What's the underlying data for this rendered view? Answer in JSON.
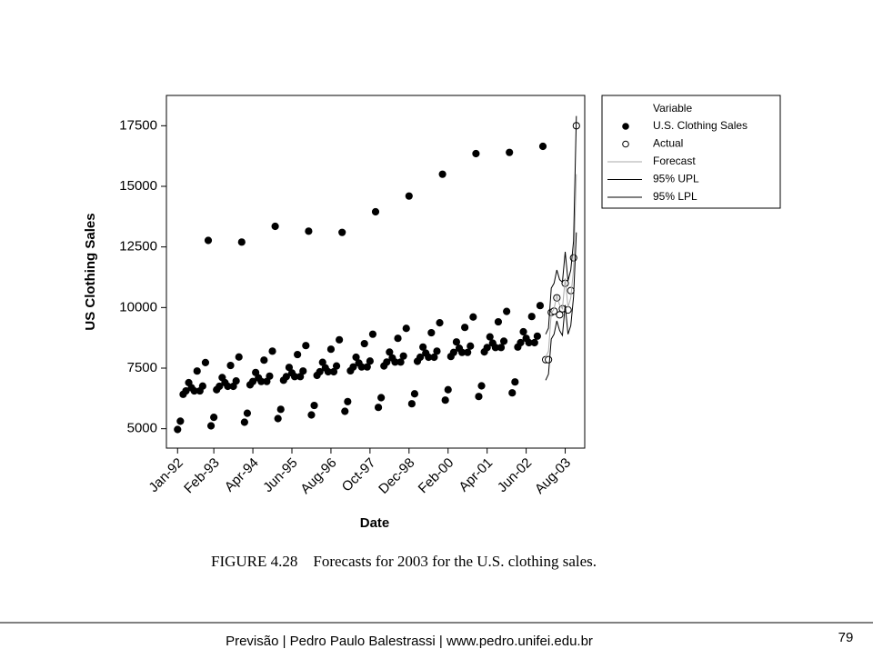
{
  "chart_data": {
    "type": "scatter",
    "caption": "FIGURE 4.28    Forecasts for 2003 for the U.S. clothing sales.",
    "xlabel": "Date",
    "ylabel": "US Clothing Sales",
    "legend_title": "Variable",
    "legend": "right",
    "xlim": [
      -3,
      147
    ],
    "ylim": [
      4200,
      18750
    ],
    "xticks": [
      {
        "value": 1,
        "label": "Jan-92"
      },
      {
        "value": 14,
        "label": "Feb-93"
      },
      {
        "value": 28,
        "label": "Apr-94"
      },
      {
        "value": 42,
        "label": "Jun-95"
      },
      {
        "value": 56,
        "label": "Aug-96"
      },
      {
        "value": 70,
        "label": "Oct-97"
      },
      {
        "value": 84,
        "label": "Dec-98"
      },
      {
        "value": 98,
        "label": "Feb-00"
      },
      {
        "value": 112,
        "label": "Apr-01"
      },
      {
        "value": 126,
        "label": "Jun-02"
      },
      {
        "value": 140,
        "label": "Aug-03"
      }
    ],
    "yticks": [
      5000,
      7500,
      10000,
      12500,
      15000,
      17500
    ],
    "series": [
      {
        "name": "U.S. Clothing Sales",
        "color": "#000000",
        "style": "dot",
        "x": [
          1,
          2,
          3,
          4,
          5,
          6,
          7,
          8,
          9,
          10,
          11,
          12,
          13,
          14,
          15,
          16,
          17,
          18,
          19,
          20,
          21,
          22,
          23,
          24,
          25,
          26,
          27,
          28,
          29,
          30,
          31,
          32,
          33,
          34,
          35,
          36,
          37,
          38,
          39,
          40,
          41,
          42,
          43,
          44,
          45,
          46,
          47,
          48,
          49,
          50,
          51,
          52,
          53,
          54,
          55,
          56,
          57,
          58,
          59,
          60,
          61,
          62,
          63,
          64,
          65,
          66,
          67,
          68,
          69,
          70,
          71,
          72,
          73,
          74,
          75,
          76,
          77,
          78,
          79,
          80,
          81,
          82,
          83,
          84,
          85,
          86,
          87,
          88,
          89,
          90,
          91,
          92,
          93,
          94,
          95,
          96,
          97,
          98,
          99,
          100,
          101,
          102,
          103,
          104,
          105,
          106,
          107,
          108,
          109,
          110,
          111,
          112,
          113,
          114,
          115,
          116,
          117,
          118,
          119,
          120,
          121,
          122,
          123,
          124,
          125,
          126,
          127,
          128,
          129,
          130,
          131,
          132
        ],
        "values": [
          4970,
          5310,
          6420,
          6560,
          6900,
          6690,
          6560,
          7380,
          6560,
          6760,
          7730,
          12770,
          5120,
          5470,
          6610,
          6750,
          7110,
          6900,
          6750,
          7610,
          6750,
          6970,
          7960,
          12700,
          5270,
          5640,
          6810,
          6950,
          7320,
          7100,
          6950,
          7830,
          6950,
          7170,
          8200,
          13350,
          5420,
          5800,
          7000,
          7150,
          7530,
          7300,
          7150,
          8060,
          7150,
          7380,
          8430,
          13150,
          5570,
          5960,
          7200,
          7350,
          7740,
          7510,
          7350,
          8280,
          7350,
          7590,
          8670,
          13100,
          5720,
          6120,
          7390,
          7550,
          7950,
          7710,
          7550,
          8510,
          7550,
          7790,
          8900,
          13950,
          5880,
          6280,
          7590,
          7750,
          8160,
          7920,
          7750,
          8730,
          7750,
          8000,
          9140,
          14600,
          6030,
          6440,
          7780,
          7950,
          8370,
          8120,
          7950,
          8960,
          7950,
          8200,
          9370,
          15500,
          6180,
          6610,
          7980,
          8150,
          8580,
          8320,
          8150,
          9180,
          8150,
          8410,
          9610,
          16350,
          6330,
          6770,
          8170,
          8350,
          8790,
          8530,
          8350,
          9410,
          8350,
          8610,
          9840,
          16400,
          6480,
          6930,
          8370,
          8550,
          9000,
          8730,
          8550,
          9630,
          8550,
          8820,
          10080,
          16650
        ]
      },
      {
        "name": "Actual",
        "color": "#000000",
        "style": "circle",
        "x": [
          133,
          134,
          135,
          136,
          137,
          138,
          139,
          140,
          141,
          142,
          143,
          144
        ],
        "values": [
          7850,
          7850,
          9800,
          9850,
          10400,
          9700,
          9950,
          11000,
          9900,
          10700,
          12050,
          17500
        ]
      },
      {
        "name": "Forecast",
        "color": "#aaaaaa",
        "style": "line",
        "x": [
          133,
          134,
          135,
          136,
          137,
          138,
          139,
          140,
          141,
          142,
          143,
          144
        ],
        "values": [
          7950,
          8200,
          9750,
          9950,
          10500,
          10100,
          9950,
          11200,
          10000,
          10400,
          11600,
          15500
        ]
      },
      {
        "name": "95% UPL",
        "color": "#000000",
        "style": "line",
        "x": [
          133,
          134,
          135,
          136,
          137,
          138,
          139,
          140,
          141,
          142,
          143,
          144
        ],
        "values": [
          8900,
          9150,
          10800,
          11000,
          11550,
          11150,
          11050,
          12300,
          11100,
          11550,
          12750,
          17900
        ]
      },
      {
        "name": "95% LPL",
        "color": "#000000",
        "style": "line",
        "x": [
          133,
          134,
          135,
          136,
          137,
          138,
          139,
          140,
          141,
          142,
          143,
          144
        ],
        "values": [
          7000,
          7250,
          8700,
          8900,
          9450,
          9050,
          8850,
          10100,
          8900,
          9250,
          10450,
          13100
        ]
      }
    ]
  },
  "footer": {
    "text": "Previsão | Pedro Paulo Balestrassi | www.pedro.unifei.edu.br",
    "page": "79"
  }
}
